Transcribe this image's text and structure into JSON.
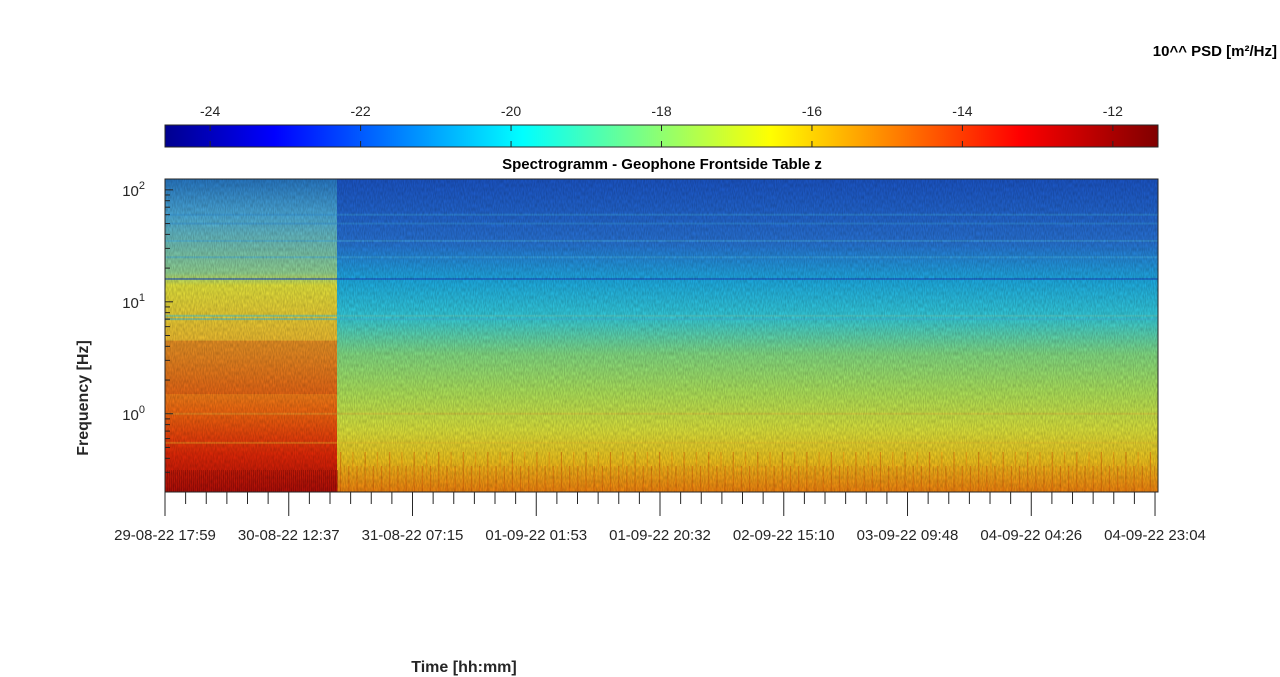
{
  "chart_data": {
    "type": "heatmap",
    "title": "Spectrogramm - Geophone Frontside Table z",
    "xlabel": "Time [hh:mm]",
    "ylabel": "Frequency [Hz]",
    "yscale": "log",
    "ylim": [
      0.2,
      125
    ],
    "y_ticks": [
      {
        "value": 100,
        "base": "10",
        "exp": "2"
      },
      {
        "value": 10,
        "base": "10",
        "exp": "1"
      },
      {
        "value": 1,
        "base": "10",
        "exp": "0"
      }
    ],
    "x_ticks": [
      "29-08-22  17:59",
      "30-08-22  12:37",
      "31-08-22  07:15",
      "01-09-22  01:53",
      "01-09-22  20:32",
      "02-09-22  15:10",
      "03-09-22  09:48",
      "04-09-22  04:26",
      "04-09-22  23:04"
    ],
    "colorbar": {
      "label": "10^^ PSD [m²/Hz]",
      "ticks": [
        "-24",
        "-22",
        "-20",
        "-18",
        "-16",
        "-14",
        "-12"
      ],
      "tick_values": [
        -24,
        -22,
        -20,
        -18,
        -16,
        -14,
        -12
      ],
      "range": [
        -24.6,
        -11.4
      ],
      "colormap": "jet",
      "placement": "top"
    },
    "regions": [
      {
        "x_from": "29-08-22  17:59",
        "x_to": "30-08-22  12:37",
        "psd_log10_low_freq": -12.5,
        "psd_log10_mid_freq": -14,
        "psd_log10_high_freq": -18.5
      },
      {
        "x_from": "30-08-22  12:37",
        "x_to": "04-09-22  23:04",
        "psd_log10_low_freq": -15,
        "psd_log10_mid_freq": -17.5,
        "psd_log10_high_freq": -21.5
      }
    ]
  }
}
